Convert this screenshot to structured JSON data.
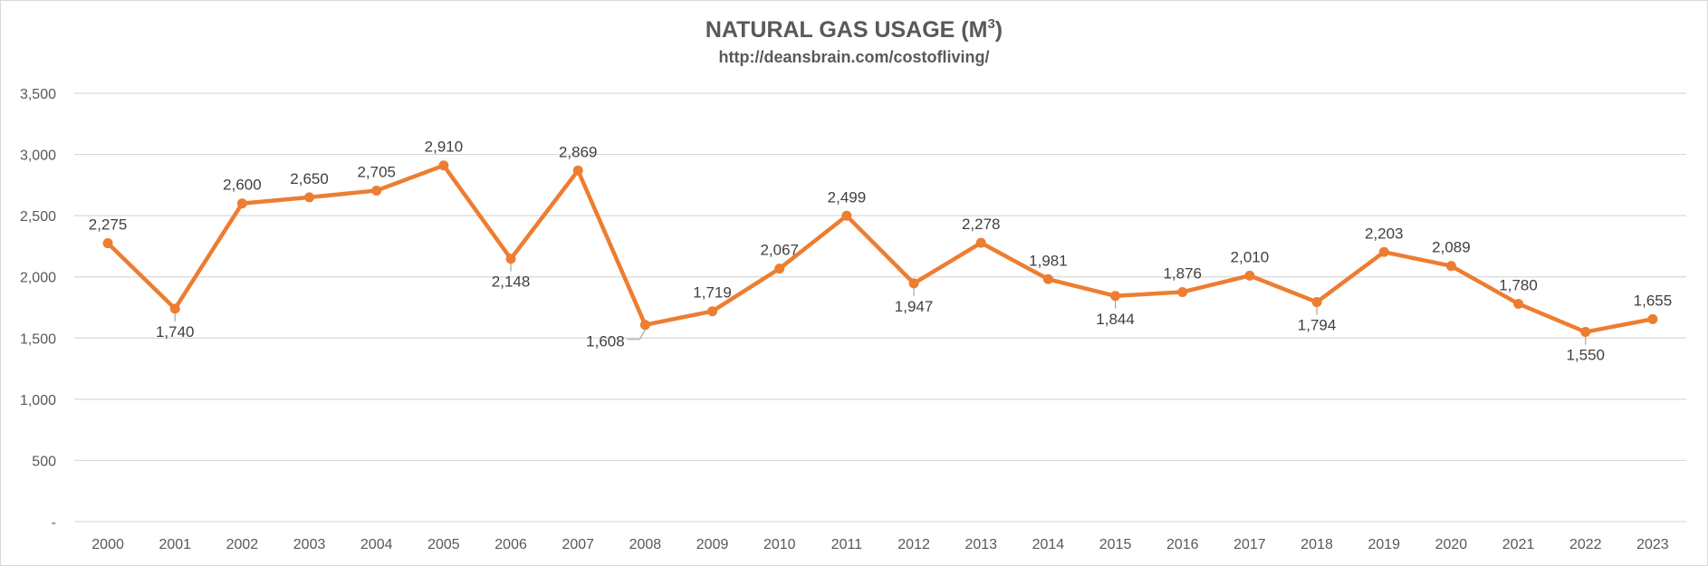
{
  "chart_data": {
    "type": "line",
    "title": "NATURAL GAS USAGE (M",
    "title_superscript": "3",
    "title_suffix": ")",
    "subtitle": "http://deansbrain.com/costofliving/",
    "xlabel": "",
    "ylabel": "",
    "ylim": [
      0,
      3500
    ],
    "y_ticks": [
      0,
      500,
      1000,
      1500,
      2000,
      2500,
      3000,
      3500
    ],
    "y_tick_labels": [
      "-",
      "500",
      "1,000",
      "1,500",
      "2,000",
      "2,500",
      "3,000",
      "3,500"
    ],
    "grid": true,
    "legend": "none",
    "line_color": "#ED7D31",
    "categories": [
      "2000",
      "2001",
      "2002",
      "2003",
      "2004",
      "2005",
      "2006",
      "2007",
      "2008",
      "2009",
      "2010",
      "2011",
      "2012",
      "2013",
      "2014",
      "2015",
      "2016",
      "2017",
      "2018",
      "2019",
      "2020",
      "2021",
      "2022",
      "2023"
    ],
    "values": [
      2275,
      1740,
      2600,
      2650,
      2705,
      2910,
      2148,
      2869,
      1608,
      1719,
      2067,
      2499,
      1947,
      2278,
      1981,
      1844,
      1876,
      2010,
      1794,
      2203,
      2089,
      1780,
      1550,
      1655
    ],
    "value_labels": [
      "2,275",
      "1,740",
      "2,600",
      "2,650",
      "2,705",
      "2,910",
      "2,148",
      "2,869",
      "1,608",
      "1,719",
      "2,067",
      "2,499",
      "1,947",
      "2,278",
      "1,981",
      "1,844",
      "1,876",
      "2,010",
      "1,794",
      "2,203",
      "2,089",
      "1,780",
      "1,550",
      "1,655"
    ]
  }
}
